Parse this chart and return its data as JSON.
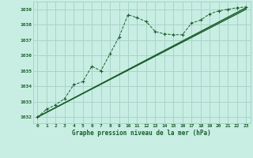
{
  "title": "Graphe pression niveau de la mer (hPa)",
  "background_color": "#c8eee4",
  "grid_color": "#a8d4c8",
  "line_color": "#1a5c2a",
  "ylim": [
    1031.6,
    1039.5
  ],
  "xlim": [
    -0.5,
    23.5
  ],
  "yticks": [
    1032,
    1033,
    1034,
    1035,
    1036,
    1037,
    1038,
    1039
  ],
  "xticks": [
    0,
    1,
    2,
    3,
    4,
    5,
    6,
    7,
    8,
    9,
    10,
    11,
    12,
    13,
    14,
    15,
    16,
    17,
    18,
    19,
    20,
    21,
    22,
    23
  ],
  "series1_x": [
    0,
    1,
    2,
    3,
    4,
    5,
    6,
    7,
    8,
    9,
    10,
    11,
    12,
    13,
    14,
    15,
    16,
    17,
    18,
    19,
    20,
    21,
    22,
    23
  ],
  "series1_y": [
    1032.0,
    1032.5,
    1032.8,
    1033.2,
    1034.1,
    1034.3,
    1035.3,
    1035.0,
    1036.1,
    1037.2,
    1038.65,
    1038.45,
    1038.2,
    1037.55,
    1037.4,
    1037.35,
    1037.35,
    1038.1,
    1038.3,
    1038.7,
    1038.9,
    1039.0,
    1039.1,
    1039.15
  ],
  "series2_x": [
    0,
    23
  ],
  "series2_y": [
    1032.0,
    1039.0
  ],
  "series3_x": [
    0,
    23
  ],
  "series3_y": [
    1032.0,
    1039.1
  ]
}
